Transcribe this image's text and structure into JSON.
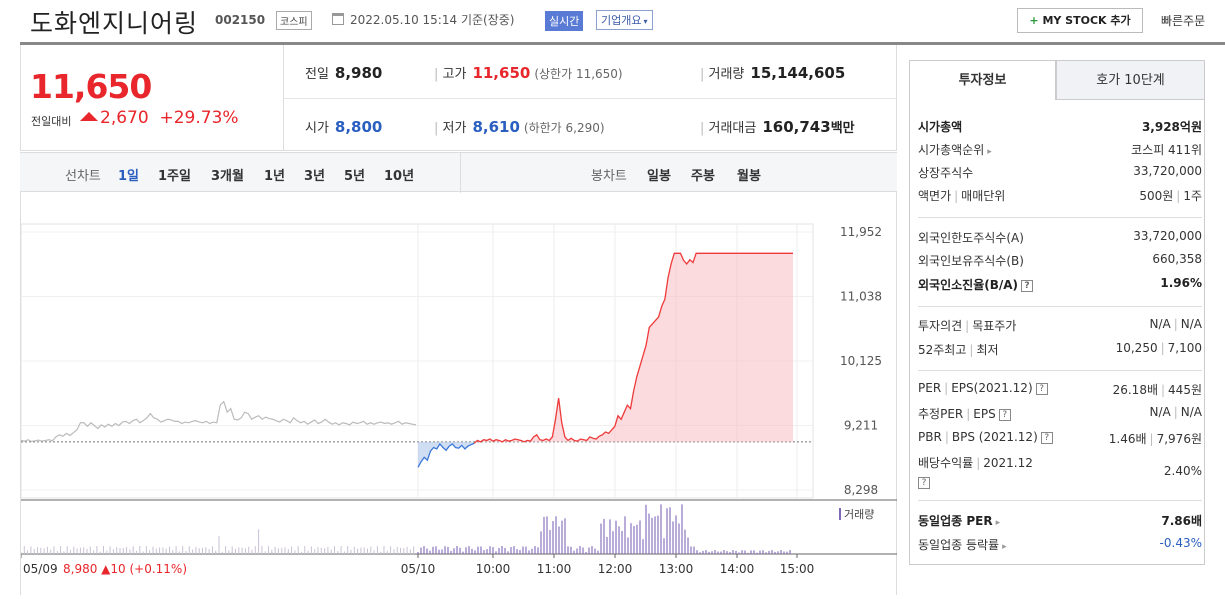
{
  "header": {
    "company_name": "도화엔지니어링",
    "code": "002150",
    "market_badge": "코스피",
    "datetime": "2022.05.10 15:14",
    "basis": "기준(장중)",
    "realtime_badge": "실시간",
    "company_info_dropdown": "기업개요",
    "mystock_label": "MY STOCK 추가",
    "quick_order": "빠른주문"
  },
  "price": {
    "current": "11,650",
    "change_label": "전일대비",
    "change": "2,670",
    "change_pct": "+29.73%"
  },
  "stats": {
    "prev_label": "전일",
    "prev": "8,980",
    "high_label": "고가",
    "high": "11,650",
    "upper_limit": "(상한가 11,650)",
    "volume_label": "거래량",
    "volume": "15,144,605",
    "open_label": "시가",
    "open": "8,800",
    "low_label": "저가",
    "low": "8,610",
    "lower_limit": "(하한가 6,290)",
    "amount_label": "거래대금",
    "amount": "160,743",
    "amount_unit": "백만"
  },
  "chart_tabs": {
    "line_label": "선차트",
    "line_options": [
      "1일",
      "1주일",
      "3개월",
      "1년",
      "3년",
      "5년",
      "10년"
    ],
    "line_selected": "1일",
    "candle_label": "봉차트",
    "candle_options": [
      "일봉",
      "주봉",
      "월봉"
    ]
  },
  "chart_data": {
    "type": "line",
    "y_ticks": [
      "11,952",
      "11,038",
      "10,125",
      "9,211",
      "8,298"
    ],
    "ylim": [
      8298,
      11952
    ],
    "reference_price": 8980,
    "x_ticks": [
      "05/10",
      "10:00",
      "11:00",
      "12:00",
      "13:00",
      "14:00",
      "15:00"
    ],
    "prev_day": {
      "label": "05/09",
      "close": "8,980",
      "change": "▲10",
      "change_pct": "(+0.11%)"
    },
    "volume_legend": "거래량",
    "series": [
      {
        "values": [
          9000,
          8990,
          9010,
          8985,
          8995,
          9005,
          8990,
          9000,
          9010,
          8995,
          9050,
          9080,
          9060,
          9100,
          9070,
          9110,
          9150,
          9250,
          9250,
          9200,
          9250,
          9210,
          9170,
          9220,
          9190,
          9230,
          9200,
          9240,
          9210,
          9260,
          9270,
          9240,
          9280,
          9300,
          9250,
          9280,
          9320,
          9380,
          9320,
          9300,
          9260,
          9280,
          9300,
          9290,
          9270,
          9270,
          9240,
          9260,
          9250,
          9270,
          9280,
          9260,
          9250,
          9270,
          9240,
          9260,
          9250,
          9500,
          9550,
          9400,
          9450,
          9300,
          9290,
          9320,
          9400,
          9380,
          9300,
          9330,
          9350,
          9300,
          9330,
          9310,
          9300,
          9280,
          9260,
          9300,
          9280,
          9250,
          9320,
          9280,
          9250,
          9270,
          9230,
          9260,
          9290,
          9240,
          9260,
          9300,
          9260,
          9230,
          9250,
          9220,
          9250,
          9240,
          9220,
          9260,
          9240,
          9250,
          9270,
          9230,
          9250,
          9230,
          9250,
          9260,
          9240,
          9250,
          9230,
          9250,
          9270,
          9230,
          9250,
          9240,
          9230,
          9220
        ]
      },
      {
        "values": [
          8620,
          8700,
          8760,
          8720,
          8850,
          8900,
          8880,
          8950,
          8900,
          8860,
          8920,
          8950,
          8900,
          8890,
          8930,
          8880,
          8920,
          8940,
          8960,
          9000,
          8980,
          9010,
          9000,
          9020,
          8990,
          9010,
          9000,
          8980,
          9010,
          8990,
          9000,
          9020,
          9010,
          9000,
          8980,
          9000,
          8990,
          9050,
          9080,
          9010,
          9000,
          9020,
          9000,
          9050,
          9300,
          9600,
          9250,
          9050,
          9000,
          9030,
          9000,
          8990,
          9020,
          9010,
          9000,
          9050,
          9030,
          9020,
          9060,
          9080,
          9120,
          9100,
          9150,
          9200,
          9350,
          9300,
          9400,
          9500,
          9450,
          9700,
          9900,
          10050,
          10200,
          10350,
          10600,
          10650,
          10700,
          10750,
          10900,
          11000,
          11300,
          11500,
          11650,
          11650,
          11650,
          11550,
          11500,
          11560,
          11520,
          11650,
          11650,
          11650,
          11650,
          11650,
          11650,
          11650,
          11650,
          11650,
          11650,
          11650,
          11650,
          11650,
          11650,
          11650,
          11650,
          11650,
          11650,
          11650,
          11650,
          11650,
          11650,
          11650,
          11650,
          11650,
          11650,
          11650,
          11650,
          11650,
          11650,
          11650,
          11650
        ]
      }
    ]
  },
  "invest_tabs": [
    "투자정보",
    "호가 10단계"
  ],
  "invest_info": {
    "market_cap_label": "시가총액",
    "market_cap": "3,928억원",
    "market_cap_rank_label": "시가총액순위",
    "market_cap_rank": "코스피 411위",
    "listed_shares_label": "상장주식수",
    "listed_shares": "33,720,000",
    "face_value_label": "액면가",
    "trade_unit_label": "매매단위",
    "face_value": "500원",
    "trade_unit": "1주",
    "foreign_limit_label": "외국인한도주식수(A)",
    "foreign_limit": "33,720,000",
    "foreign_hold_label": "외국인보유주식수(B)",
    "foreign_hold": "660,358",
    "foreign_ratio_label": "외국인소진율(B/A)",
    "foreign_ratio": "1.96%",
    "opinion_label": "투자의견",
    "target_label": "목표주가",
    "opinion": "N/A",
    "target": "N/A",
    "w52_high_label": "52주최고",
    "w52_low_label": "최저",
    "w52_high": "10,250",
    "w52_low": "7,100",
    "per_label": "PER",
    "eps_label": "EPS(2021.12)",
    "per": "26.18배",
    "eps": "445원",
    "est_per_label": "추정PER",
    "est_eps_label": "EPS",
    "est_per": "N/A",
    "est_eps": "N/A",
    "pbr_label": "PBR",
    "bps_label": "BPS (2021.12)",
    "pbr": "1.46배",
    "bps": "7,976원",
    "div_label": "배당수익률",
    "div_period": "2021.12",
    "div": "2.40%",
    "industry_per_label": "동일업종 PER",
    "industry_per": "7.86배",
    "industry_change_label": "동일업종 등락률",
    "industry_change": "-0.43%"
  }
}
